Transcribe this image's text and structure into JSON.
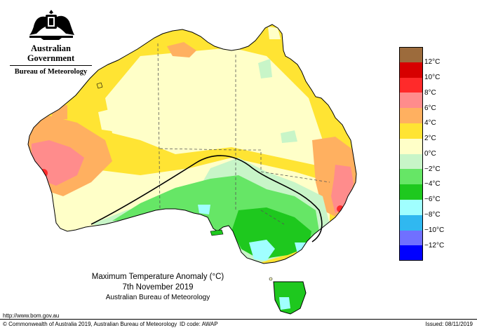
{
  "header": {
    "government": "Australian Government",
    "bureau": "Bureau of Meteorology"
  },
  "map": {
    "title": "Maximum Temperature Anomaly (°C)",
    "date": "7th November 2019",
    "source": "Australian Bureau of Meteorology"
  },
  "legend": {
    "unit": "°C",
    "items": [
      {
        "value": 12,
        "label": "12°C",
        "color": "#d70000"
      },
      {
        "value": 10,
        "label": "10°C",
        "color": "#ff2a2a"
      },
      {
        "value": 8,
        "label": "8°C",
        "color": "#ff8c8c"
      },
      {
        "value": 6,
        "label": "6°C",
        "color": "#ffb060"
      },
      {
        "value": 4,
        "label": "4°C",
        "color": "#ffe433"
      },
      {
        "value": 2,
        "label": "2°C",
        "color": "#ffffc8"
      },
      {
        "value": 0,
        "label": "0°C",
        "color": "#c8f5c8"
      },
      {
        "value": -2,
        "label": "−2°C",
        "color": "#66e666"
      },
      {
        "value": -4,
        "label": "−4°C",
        "color": "#1ec81e"
      },
      {
        "value": -6,
        "label": "−6°C",
        "color": "#a0ffff"
      },
      {
        "value": -8,
        "label": "−8°C",
        "color": "#30b8f0"
      },
      {
        "value": -10,
        "label": "−10°C",
        "color": "#7070ff"
      },
      {
        "value": -12,
        "label": "−12°C",
        "color": "#0000ff"
      }
    ],
    "top_color": "#9c6b3c"
  },
  "footer": {
    "url": "http://www.bom.gov.au",
    "copyright": "© Commonwealth of Australia 2019, Australian Bureau of Meteorology",
    "id_code": "ID code: AWAP",
    "issued": "Issued: 08/11/2019"
  }
}
